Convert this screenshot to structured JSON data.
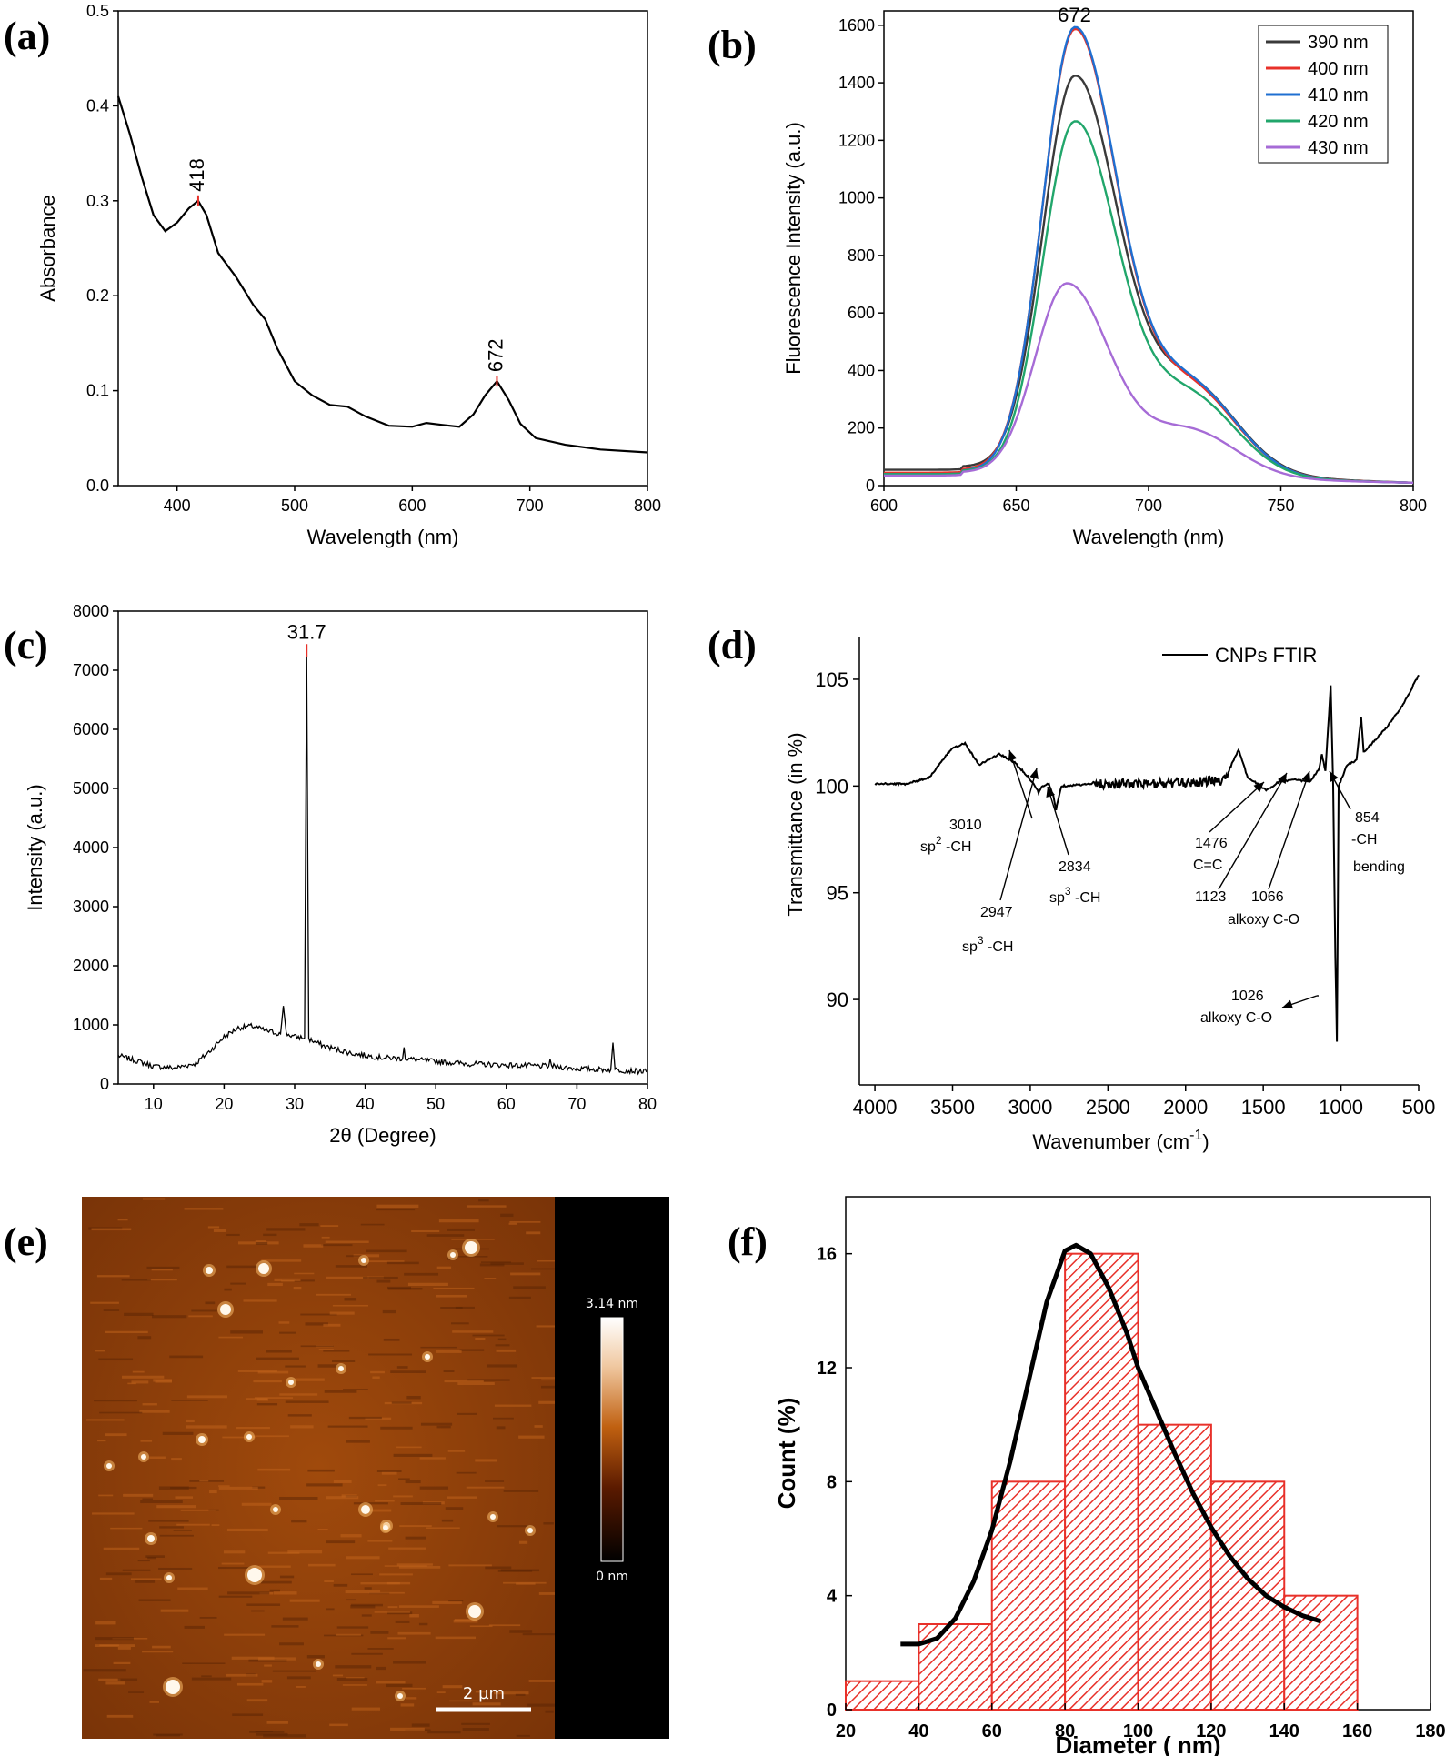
{
  "panels": {
    "a": {
      "label": "(a)"
    },
    "b": {
      "label": "(b)"
    },
    "c": {
      "label": "(c)"
    },
    "d": {
      "label": "(d)"
    },
    "e": {
      "label": "(e)",
      "colorbar_max": "3.14 nm",
      "colorbar_min": "0 nm",
      "scale_bar": "2 µm"
    },
    "f": {
      "label": "(f)"
    }
  },
  "chart_data": [
    {
      "panel": "a",
      "type": "line",
      "xlabel": "Wavelength (nm)",
      "ylabel": "Absorbance",
      "xlim": [
        350,
        800
      ],
      "ylim": [
        0.0,
        0.5
      ],
      "xticks": [
        400,
        500,
        600,
        700,
        800
      ],
      "yticks": [
        0.0,
        0.1,
        0.2,
        0.3,
        0.4,
        0.5
      ],
      "ytick_labels": [
        "0.0",
        "0.1",
        "0.2",
        "0.3",
        "0.4",
        "0.5"
      ],
      "peaks": [
        {
          "x": 418,
          "y": 0.3,
          "label": "418"
        },
        {
          "x": 672,
          "y": 0.11,
          "label": "672"
        }
      ],
      "series": [
        {
          "color": "#000000",
          "points": [
            [
              350,
              0.41
            ],
            [
              360,
              0.37
            ],
            [
              370,
              0.325
            ],
            [
              380,
              0.285
            ],
            [
              390,
              0.268
            ],
            [
              400,
              0.277
            ],
            [
              410,
              0.292
            ],
            [
              418,
              0.3
            ],
            [
              425,
              0.285
            ],
            [
              435,
              0.245
            ],
            [
              450,
              0.22
            ],
            [
              465,
              0.19
            ],
            [
              475,
              0.175
            ],
            [
              485,
              0.145
            ],
            [
              500,
              0.11
            ],
            [
              515,
              0.095
            ],
            [
              530,
              0.085
            ],
            [
              545,
              0.083
            ],
            [
              560,
              0.073
            ],
            [
              580,
              0.063
            ],
            [
              600,
              0.062
            ],
            [
              612,
              0.066
            ],
            [
              625,
              0.064
            ],
            [
              640,
              0.062
            ],
            [
              652,
              0.075
            ],
            [
              662,
              0.095
            ],
            [
              672,
              0.11
            ],
            [
              682,
              0.09
            ],
            [
              692,
              0.065
            ],
            [
              705,
              0.05
            ],
            [
              730,
              0.043
            ],
            [
              760,
              0.038
            ],
            [
              800,
              0.035
            ]
          ]
        }
      ]
    },
    {
      "panel": "b",
      "type": "line",
      "xlabel": "Wavelength (nm)",
      "ylabel": "Fluorescence Intensity (a.u.)",
      "xlim": [
        600,
        800
      ],
      "ylim": [
        0,
        1650
      ],
      "xticks": [
        600,
        650,
        700,
        750,
        800
      ],
      "yticks": [
        0,
        200,
        400,
        600,
        800,
        1000,
        1200,
        1400,
        1600
      ],
      "peak_label": {
        "x": 672,
        "y": 1600,
        "text": "672"
      },
      "legend_position": "top-right",
      "series": [
        {
          "name": "390 nm",
          "color": "#3a3a3a",
          "peak": 1410,
          "tail": 315,
          "base_left": 55
        },
        {
          "name": "400 nm",
          "color": "#e8312a",
          "peak": 1570,
          "tail": 310,
          "base_left": 45
        },
        {
          "name": "410 nm",
          "color": "#1f6fd1",
          "peak": 1575,
          "tail": 320,
          "base_left": 40
        },
        {
          "name": "420 nm",
          "color": "#21a66b",
          "peak": 1250,
          "tail": 280,
          "base_left": 40
        },
        {
          "name": "430 nm",
          "color": "#a66bd6",
          "peak": 695,
          "tail": 165,
          "base_left": 35
        }
      ]
    },
    {
      "panel": "c",
      "type": "line",
      "xlabel": "2θ (Degree)",
      "ylabel": "Intensity (a.u.)",
      "xlim": [
        5,
        80
      ],
      "ylim": [
        0,
        8000
      ],
      "xticks": [
        10,
        20,
        30,
        40,
        50,
        60,
        70,
        80
      ],
      "yticks": [
        0,
        1000,
        2000,
        3000,
        4000,
        5000,
        6000,
        7000,
        8000
      ],
      "peak_label": {
        "x": 31.7,
        "y": 7350,
        "text": "31.7"
      },
      "series": [
        {
          "color": "#000000",
          "points": [
            [
              5,
              480
            ],
            [
              8,
              380
            ],
            [
              10,
              300
            ],
            [
              13,
              270
            ],
            [
              16,
              350
            ],
            [
              18,
              560
            ],
            [
              20,
              800
            ],
            [
              22,
              950
            ],
            [
              24,
              980
            ],
            [
              26,
              900
            ],
            [
              28,
              850
            ],
            [
              28.4,
              1320
            ],
            [
              28.8,
              850
            ],
            [
              30,
              800
            ],
            [
              31.4,
              780
            ],
            [
              31.7,
              7350
            ],
            [
              32.0,
              760
            ],
            [
              34,
              650
            ],
            [
              38,
              520
            ],
            [
              42,
              450
            ],
            [
              45.3,
              430
            ],
            [
              45.5,
              620
            ],
            [
              45.7,
              430
            ],
            [
              50,
              380
            ],
            [
              55,
              340
            ],
            [
              60,
              320
            ],
            [
              66,
              300
            ],
            [
              66.2,
              420
            ],
            [
              66.4,
              300
            ],
            [
              70,
              260
            ],
            [
              74.8,
              240
            ],
            [
              75.1,
              700
            ],
            [
              75.4,
              240
            ],
            [
              78,
              220
            ],
            [
              80,
              210
            ]
          ]
        }
      ]
    },
    {
      "panel": "d",
      "type": "line",
      "xlabel": "Wavenumber (cm",
      "xlabel_sup": "-1",
      "xlabel_end": ")",
      "ylabel": "Transmittance (in %)",
      "xlim": [
        4100,
        500
      ],
      "ylim": [
        86,
        107
      ],
      "xticks": [
        4000,
        3500,
        3000,
        2500,
        2000,
        1500,
        1000,
        500
      ],
      "yticks": [
        90,
        95,
        100,
        105
      ],
      "legend": "CNPs FTIR",
      "legend_position": "top-right",
      "series": [
        {
          "name": "CNPs FTIR",
          "color": "#000000",
          "points": [
            [
              4000,
              100.1
            ],
            [
              3800,
              100.1
            ],
            [
              3650,
              100.4
            ],
            [
              3500,
              101.8
            ],
            [
              3420,
              102.0
            ],
            [
              3330,
              101.0
            ],
            [
              3250,
              101.3
            ],
            [
              3200,
              101.5
            ],
            [
              3100,
              101.1
            ],
            [
              3010,
              100.4
            ],
            [
              2960,
              99.9
            ],
            [
              2947,
              99.7
            ],
            [
              2920,
              100.0
            ],
            [
              2880,
              100.1
            ],
            [
              2850,
              99.5
            ],
            [
              2834,
              98.9
            ],
            [
              2800,
              100.0
            ],
            [
              2600,
              100.1
            ],
            [
              2200,
              100.1
            ],
            [
              1900,
              100.2
            ],
            [
              1750,
              100.3
            ],
            [
              1660,
              101.7
            ],
            [
              1600,
              100.4
            ],
            [
              1476,
              99.8
            ],
            [
              1400,
              100.2
            ],
            [
              1300,
              100.3
            ],
            [
              1200,
              100.2
            ],
            [
              1140,
              100.8
            ],
            [
              1123,
              101.5
            ],
            [
              1100,
              100.7
            ],
            [
              1066,
              104.7
            ],
            [
              1050,
              100.0
            ],
            [
              1036,
              92.0
            ],
            [
              1026,
              88.0
            ],
            [
              1015,
              100.0
            ],
            [
              960,
              101.0
            ],
            [
              900,
              101.2
            ],
            [
              870,
              103.2
            ],
            [
              854,
              101.6
            ],
            [
              800,
              102.0
            ],
            [
              700,
              102.8
            ],
            [
              600,
              103.8
            ],
            [
              500,
              105.2
            ]
          ]
        }
      ],
      "annotations": [
        {
          "lines": [
            "3010",
            "sp2 -CH"
          ]
        },
        {
          "lines": [
            "2947",
            "sp3 -CH"
          ]
        },
        {
          "lines": [
            "2834",
            "sp3 -CH"
          ]
        },
        {
          "lines": [
            "1476",
            "C=C"
          ]
        },
        {
          "lines": [
            "1123",
            "1066",
            "alkoxy C-O"
          ]
        },
        {
          "lines": [
            "854",
            "-CH",
            "bending"
          ]
        },
        {
          "lines": [
            "1026",
            "alkoxy C-O"
          ]
        }
      ]
    },
    {
      "panel": "f",
      "type": "bar",
      "xlabel": "Diameter ( nm)",
      "ylabel": "Count (%)",
      "xlim": [
        20,
        180
      ],
      "ylim": [
        0,
        18
      ],
      "xticks": [
        20,
        40,
        60,
        80,
        100,
        120,
        140,
        160,
        180
      ],
      "yticks": [
        0,
        4,
        8,
        12,
        16
      ],
      "bins": [
        {
          "from": 20,
          "to": 40,
          "value": 1
        },
        {
          "from": 40,
          "to": 60,
          "value": 3
        },
        {
          "from": 60,
          "to": 80,
          "value": 8
        },
        {
          "from": 80,
          "to": 100,
          "value": 16
        },
        {
          "from": 100,
          "to": 120,
          "value": 10
        },
        {
          "from": 120,
          "to": 140,
          "value": 8
        },
        {
          "from": 140,
          "to": 160,
          "value": 4
        }
      ],
      "bar_color": "#e8312a",
      "fit_curve": [
        [
          35,
          2.3
        ],
        [
          40,
          2.3
        ],
        [
          45,
          2.5
        ],
        [
          50,
          3.2
        ],
        [
          55,
          4.5
        ],
        [
          60,
          6.3
        ],
        [
          65,
          8.7
        ],
        [
          70,
          11.5
        ],
        [
          75,
          14.3
        ],
        [
          80,
          16.1
        ],
        [
          83,
          16.3
        ],
        [
          87,
          16.0
        ],
        [
          92,
          14.8
        ],
        [
          97,
          13.2
        ],
        [
          100,
          12.0
        ],
        [
          105,
          10.5
        ],
        [
          110,
          9.0
        ],
        [
          115,
          7.6
        ],
        [
          120,
          6.4
        ],
        [
          125,
          5.4
        ],
        [
          130,
          4.6
        ],
        [
          135,
          4.0
        ],
        [
          140,
          3.6
        ],
        [
          145,
          3.3
        ],
        [
          150,
          3.1
        ]
      ]
    }
  ]
}
